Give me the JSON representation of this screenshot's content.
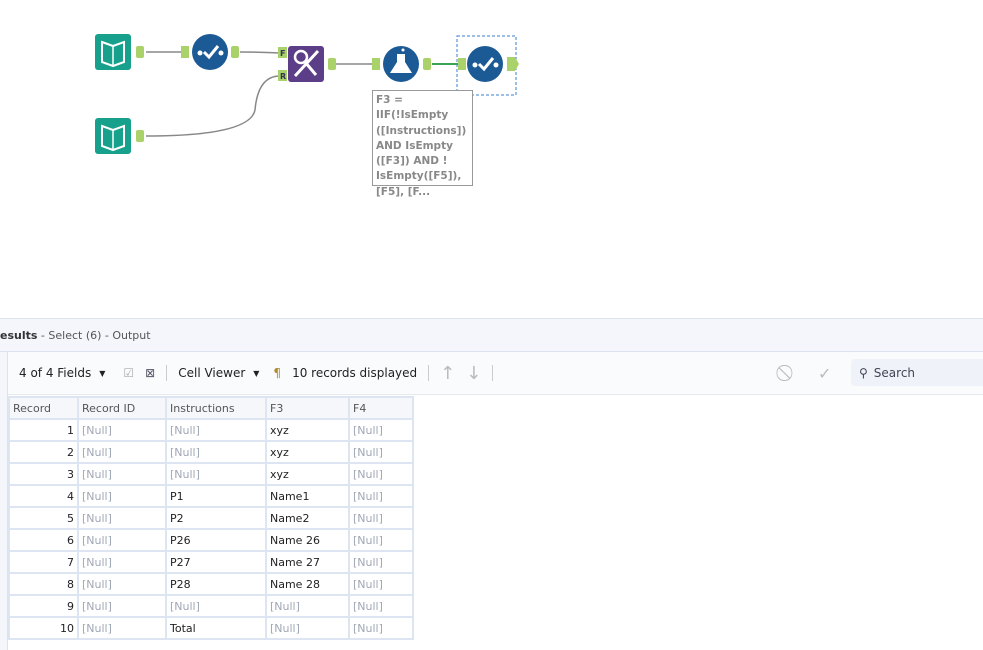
{
  "canvas": {
    "annotation": "F3 = IIF(!IsEmpty\n([Instructions])\nAND IsEmpty\n([F3]) AND !\nIsEmpty([F5]),\n[F5], [F...",
    "join_left_anchor": "F",
    "join_right_anchor": "R",
    "colors": {
      "input": "#17a08b",
      "select": "#1c5a96",
      "join": "#5c3d87",
      "formula": "#1c5a96",
      "anchor": "#a9d26a"
    }
  },
  "results": {
    "title": "esults",
    "subtitle": " - Select (6) - Output",
    "toolbar": {
      "fields": "4 of 4 Fields",
      "cell_viewer": "Cell Viewer",
      "records": "10 records displayed",
      "search_placeholder": "Search"
    },
    "columns": [
      "Record",
      "Record ID",
      "Instructions",
      "F3",
      "F4"
    ],
    "rows": [
      [
        "1",
        "[Null]",
        "[Null]",
        "xyz",
        "[Null]"
      ],
      [
        "2",
        "[Null]",
        "[Null]",
        "xyz",
        "[Null]"
      ],
      [
        "3",
        "[Null]",
        "[Null]",
        "xyz",
        "[Null]"
      ],
      [
        "4",
        "[Null]",
        "P1",
        "Name1",
        "[Null]"
      ],
      [
        "5",
        "[Null]",
        "P2",
        "Name2",
        "[Null]"
      ],
      [
        "6",
        "[Null]",
        "P26",
        "Name 26",
        "[Null]"
      ],
      [
        "7",
        "[Null]",
        "P27",
        "Name 27",
        "[Null]"
      ],
      [
        "8",
        "[Null]",
        "P28",
        "Name 28",
        "[Null]"
      ],
      [
        "9",
        "[Null]",
        "[Null]",
        "[Null]",
        "[Null]"
      ],
      [
        "10",
        "[Null]",
        "Total",
        "[Null]",
        "[Null]"
      ]
    ]
  }
}
